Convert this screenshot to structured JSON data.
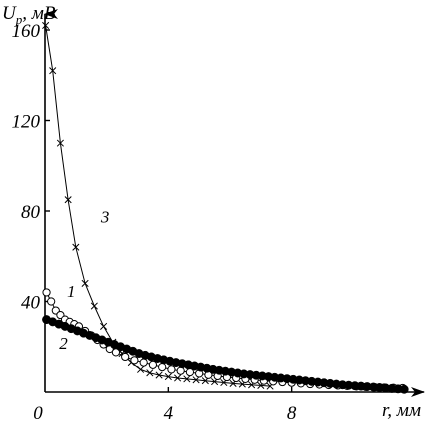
{
  "chart_data": {
    "type": "line",
    "ylabel": "U",
    "ylabel_sub": "p",
    "ylabel_unit": ", мВ",
    "xlabel": "r, мм",
    "xlim": [
      0,
      12
    ],
    "ylim": [
      0,
      170
    ],
    "x_ticks": [
      {
        "value": 0,
        "label": "0"
      },
      {
        "value": 4,
        "label": "4"
      },
      {
        "value": 8,
        "label": "8"
      }
    ],
    "y_ticks": [
      {
        "value": 40,
        "label": "40"
      },
      {
        "value": 80,
        "label": "80"
      },
      {
        "value": 120,
        "label": "120"
      },
      {
        "value": 160,
        "label": "160"
      }
    ],
    "grid": false,
    "series": [
      {
        "name": "1",
        "marker": "open-circle",
        "x": [
          0.05,
          0.2,
          0.35,
          0.5,
          0.65,
          0.8,
          0.95,
          1.1,
          1.3,
          1.5,
          1.7,
          1.9,
          2.1,
          2.3,
          2.6,
          2.9,
          3.2,
          3.5,
          3.8,
          4.1,
          4.4,
          4.7,
          5.0,
          5.3,
          5.6,
          5.9,
          6.2,
          6.5,
          6.8,
          7.1,
          7.4,
          7.7,
          8.0,
          8.3,
          8.6,
          8.9,
          9.2,
          9.5,
          9.8,
          10.1,
          10.4,
          10.7,
          11.0,
          11.3,
          11.6
        ],
        "y": [
          44,
          40,
          36,
          34,
          32,
          31,
          30,
          29,
          27,
          25,
          23,
          21,
          19,
          17.5,
          15.5,
          14,
          13,
          12,
          11,
          10,
          9.4,
          8.8,
          8.2,
          7.6,
          7.1,
          6.6,
          6.2,
          5.8,
          5.4,
          5.0,
          4.7,
          4.4,
          4.1,
          3.8,
          3.5,
          3.3,
          3.1,
          2.9,
          2.7,
          2.5,
          2.3,
          2.1,
          2.0,
          1.9,
          1.8
        ]
      },
      {
        "name": "2",
        "marker": "filled-circle",
        "x": [
          0.05,
          0.25,
          0.45,
          0.65,
          0.85,
          1.05,
          1.25,
          1.45,
          1.65,
          1.85,
          2.05,
          2.25,
          2.45,
          2.65,
          2.85,
          3.05,
          3.25,
          3.45,
          3.65,
          3.85,
          4.05,
          4.25,
          4.45,
          4.65,
          4.85,
          5.05,
          5.25,
          5.45,
          5.65,
          5.85,
          6.05,
          6.25,
          6.45,
          6.65,
          6.85,
          7.05,
          7.25,
          7.45,
          7.65,
          7.85,
          8.05,
          8.25,
          8.45,
          8.65,
          8.85,
          9.05,
          9.25,
          9.45,
          9.65,
          9.85,
          10.05,
          10.25,
          10.45,
          10.65,
          10.85,
          11.05,
          11.25,
          11.45,
          11.65
        ],
        "y": [
          32,
          31,
          30,
          29,
          28,
          27,
          26,
          25,
          24,
          23,
          22,
          21,
          20,
          19,
          18,
          17,
          16.2,
          15.5,
          14.8,
          14.2,
          13.6,
          13,
          12.5,
          12,
          11.5,
          11,
          10.5,
          10,
          9.6,
          9.2,
          8.8,
          8.4,
          8,
          7.7,
          7.4,
          7.1,
          6.8,
          6.5,
          6.2,
          5.9,
          5.6,
          5.3,
          5,
          4.7,
          4.4,
          4.1,
          3.8,
          3.5,
          3.2,
          3,
          2.8,
          2.6,
          2.4,
          2.2,
          2,
          1.8,
          1.6,
          1.4,
          1.2
        ]
      },
      {
        "name": "3",
        "marker": "cross",
        "x": [
          0.02,
          0.25,
          0.5,
          0.75,
          1.0,
          1.3,
          1.6,
          1.9,
          2.2,
          2.5,
          2.8,
          3.1,
          3.4,
          3.7,
          4.0,
          4.3,
          4.6,
          4.9,
          5.2,
          5.5,
          5.8,
          6.1,
          6.4,
          6.7,
          7.0,
          7.3
        ],
        "y": [
          162,
          142,
          110,
          85,
          64,
          48,
          38,
          29,
          22,
          17,
          13,
          10,
          8.5,
          7.5,
          6.8,
          6.2,
          5.8,
          5.4,
          5.0,
          4.6,
          4.2,
          3.8,
          3.5,
          3.2,
          2.9,
          2.6
        ]
      }
    ],
    "curve_labels": [
      {
        "text": "1",
        "x": 0.85,
        "y": 42
      },
      {
        "text": "2",
        "x": 0.6,
        "y": 19
      },
      {
        "text": "3",
        "x": 1.95,
        "y": 75
      }
    ]
  }
}
